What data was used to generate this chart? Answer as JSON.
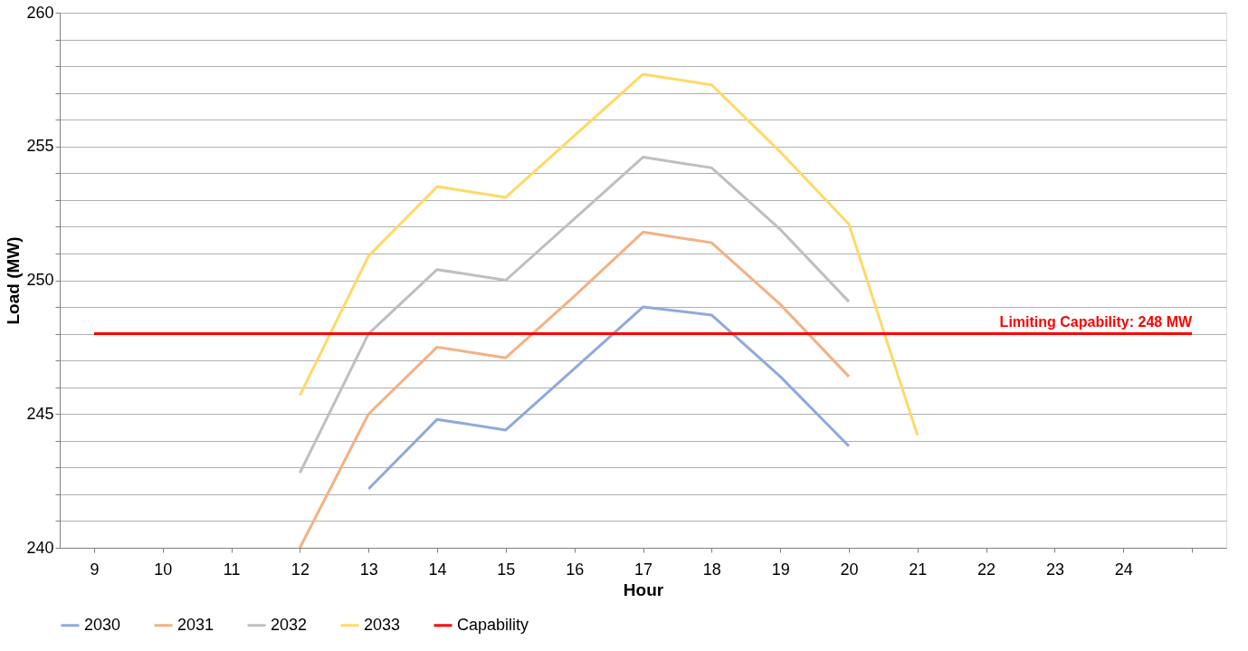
{
  "chart_data": {
    "type": "line",
    "xlabel": "Hour",
    "ylabel": "Load (MW)",
    "categories": [
      "9",
      "10",
      "11",
      "12",
      "13",
      "14",
      "15",
      "16",
      "17",
      "18",
      "19",
      "20",
      "21",
      "22",
      "23",
      "24",
      null
    ],
    "series": [
      {
        "name": "2030",
        "color": "#8faadc",
        "values": [
          null,
          null,
          null,
          null,
          242.2,
          244.8,
          244.4,
          246.7,
          249.0,
          248.7,
          246.4,
          243.8,
          null,
          null,
          null,
          null,
          null
        ]
      },
      {
        "name": "2031",
        "color": "#f4b183",
        "values": [
          null,
          null,
          null,
          240.0,
          245.0,
          247.5,
          247.1,
          249.4,
          251.8,
          251.4,
          249.1,
          246.4,
          null,
          null,
          null,
          null,
          null
        ]
      },
      {
        "name": "2032",
        "color": "#bfbfbf",
        "values": [
          null,
          null,
          null,
          242.8,
          248.0,
          250.4,
          250.0,
          252.3,
          254.6,
          254.2,
          251.9,
          249.2,
          null,
          null,
          null,
          null,
          null
        ]
      },
      {
        "name": "2033",
        "color": "#ffd966",
        "values": [
          null,
          null,
          null,
          245.7,
          250.9,
          253.5,
          253.1,
          255.4,
          257.7,
          257.3,
          254.8,
          252.1,
          244.2,
          null,
          null,
          null,
          null
        ]
      },
      {
        "name": "Capability",
        "color": "#ff0000",
        "values": [
          248,
          248,
          248,
          248,
          248,
          248,
          248,
          248,
          248,
          248,
          248,
          248,
          248,
          248,
          248,
          248,
          248
        ]
      }
    ],
    "annotations": [
      {
        "text": "Limiting Capability: 248 MW",
        "y": 248
      }
    ],
    "ylim": [
      240,
      260
    ],
    "yticks": [
      240,
      {
        "value": 241,
        "label": null
      },
      {
        "value": 242,
        "label": null
      },
      {
        "value": 243,
        "label": null
      },
      {
        "value": 244,
        "label": null
      },
      245,
      {
        "value": 246,
        "label": null
      },
      {
        "value": 247,
        "label": null
      },
      {
        "value": 248,
        "label": null
      },
      {
        "value": 249,
        "label": null
      },
      250,
      {
        "value": 251,
        "label": null
      },
      {
        "value": 252,
        "label": null
      },
      {
        "value": 253,
        "label": null
      },
      {
        "value": 254,
        "label": null
      },
      255,
      {
        "value": 256,
        "label": null
      },
      {
        "value": 257,
        "label": null
      },
      {
        "value": 258,
        "label": null
      },
      {
        "value": 259,
        "label": null
      },
      260
    ],
    "grid": "y",
    "legend": "bottom",
    "marker": "none",
    "line_style": "solid"
  }
}
